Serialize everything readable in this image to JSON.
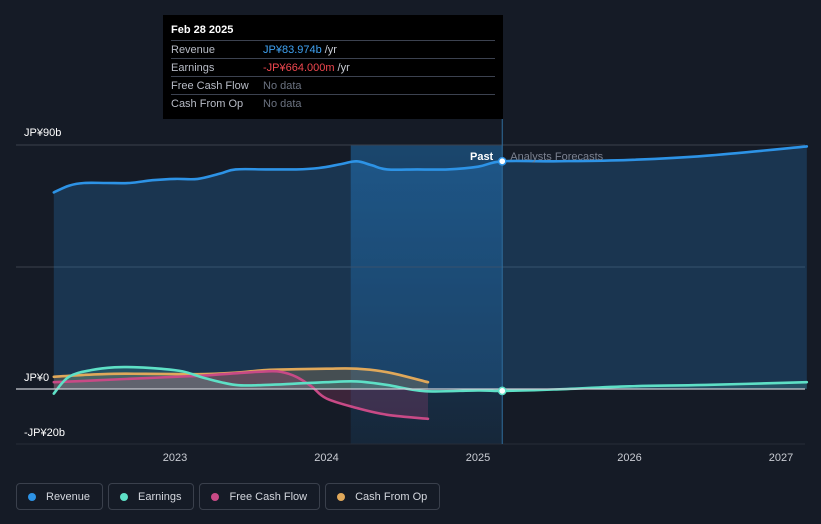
{
  "tooltip": {
    "date": "Feb 28 2025",
    "rows": [
      {
        "label": "Revenue",
        "value": "JP¥83.974b",
        "unit": "/yr"
      },
      {
        "label": "Earnings",
        "value": "-JP¥664.000m",
        "unit": "/yr"
      },
      {
        "label": "Free Cash Flow",
        "value": "No data",
        "unit": ""
      },
      {
        "label": "Cash From Op",
        "value": "No data",
        "unit": ""
      }
    ]
  },
  "markers": {
    "past": "Past",
    "forecast": "Analysts Forecasts"
  },
  "legend": [
    {
      "label": "Revenue",
      "color": "#2d93e6"
    },
    {
      "label": "Earnings",
      "color": "#5ee0c6"
    },
    {
      "label": "Free Cash Flow",
      "color": "#c84a86"
    },
    {
      "label": "Cash From Op",
      "color": "#e0a85a"
    }
  ],
  "colors": {
    "background": "#151b26",
    "revenue": "#2d93e6",
    "earnings": "#5ee0c6",
    "fcf": "#c84a86",
    "cfo": "#e0a85a",
    "grid": "#3a404c",
    "zero": "#c9ccd3"
  },
  "chart_data": {
    "type": "line",
    "title": "",
    "xlabel": "",
    "ylabel": "",
    "ylim": [
      -20,
      90
    ],
    "xlim": [
      2022.2,
      2027.17
    ],
    "y_ticks": [
      {
        "value": 90,
        "label": "JP¥90b"
      },
      {
        "value": 0,
        "label": "JP¥0"
      },
      {
        "value": -20,
        "label": "-JP¥20b"
      }
    ],
    "x_ticks": [
      {
        "value": 2023,
        "label": "2023"
      },
      {
        "value": 2024,
        "label": "2024"
      },
      {
        "value": 2025,
        "label": "2025"
      },
      {
        "value": 2026,
        "label": "2026"
      },
      {
        "value": 2027,
        "label": "2027"
      }
    ],
    "gridlines": [
      90,
      45,
      0
    ],
    "past_end": 2025.16,
    "highlight_start": 2024.16,
    "series": [
      {
        "name": "Revenue",
        "key": "revenue",
        "fill": true,
        "x": [
          2022.2,
          2022.3,
          2022.4,
          2022.55,
          2022.7,
          2022.85,
          2023.0,
          2023.15,
          2023.3,
          2023.4,
          2023.6,
          2023.8,
          2023.95,
          2024.1,
          2024.2,
          2024.3,
          2024.4,
          2024.6,
          2024.8,
          2025.0,
          2025.16,
          2025.5,
          2026.0,
          2026.5,
          2027.17
        ],
        "values": [
          72.5,
          75.0,
          76.0,
          76.0,
          76.0,
          77.0,
          77.5,
          77.5,
          79.5,
          81.0,
          81.0,
          81.0,
          81.5,
          83.0,
          84.0,
          82.5,
          81.0,
          81.0,
          81.0,
          82.0,
          84.0,
          84.0,
          84.5,
          86.0,
          89.5
        ]
      },
      {
        "name": "Earnings",
        "key": "earnings",
        "fill": true,
        "x": [
          2022.2,
          2022.3,
          2022.45,
          2022.6,
          2022.75,
          2022.9,
          2023.05,
          2023.2,
          2023.4,
          2023.6,
          2023.8,
          2024.0,
          2024.2,
          2024.4,
          2024.65,
          2025.0,
          2025.16,
          2025.5,
          2026.0,
          2026.5,
          2027.17
        ],
        "values": [
          -1.7,
          4.5,
          7.0,
          8.0,
          8.0,
          7.5,
          6.5,
          4.0,
          1.5,
          1.5,
          2.0,
          2.5,
          2.8,
          1.5,
          -0.8,
          -0.5,
          -0.7,
          -0.2,
          1.0,
          1.5,
          2.5
        ]
      },
      {
        "name": "Free Cash Flow",
        "key": "fcf",
        "fill": true,
        "x": [
          2022.2,
          2022.4,
          2022.6,
          2022.8,
          2023.0,
          2023.2,
          2023.4,
          2023.6,
          2023.7,
          2023.8,
          2023.9,
          2024.0,
          2024.2,
          2024.4,
          2024.67
        ],
        "values": [
          2.5,
          3.0,
          3.5,
          4.0,
          4.5,
          5.0,
          5.8,
          6.5,
          6.3,
          4.5,
          1.0,
          -3.5,
          -7.0,
          -9.5,
          -11.0
        ]
      },
      {
        "name": "Cash From Op",
        "key": "cfo",
        "fill": true,
        "x": [
          2022.2,
          2022.4,
          2022.6,
          2022.8,
          2023.0,
          2023.2,
          2023.4,
          2023.6,
          2023.8,
          2024.0,
          2024.2,
          2024.4,
          2024.67
        ],
        "values": [
          4.5,
          5.2,
          5.6,
          5.6,
          5.5,
          5.5,
          6.0,
          7.0,
          7.3,
          7.5,
          7.5,
          6.2,
          2.5
        ]
      }
    ]
  }
}
